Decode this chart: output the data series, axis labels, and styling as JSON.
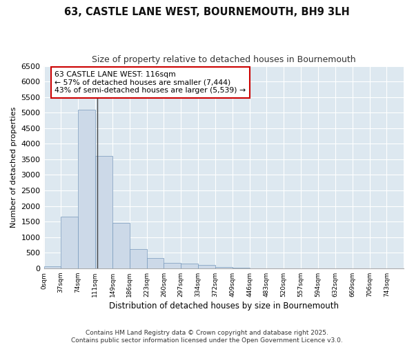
{
  "title": "63, CASTLE LANE WEST, BOURNEMOUTH, BH9 3LH",
  "subtitle": "Size of property relative to detached houses in Bournemouth",
  "xlabel": "Distribution of detached houses by size in Bournemouth",
  "ylabel": "Number of detached properties",
  "footer_line1": "Contains HM Land Registry data © Crown copyright and database right 2025.",
  "footer_line2": "Contains public sector information licensed under the Open Government Licence v3.0.",
  "bin_labels": [
    "0sqm",
    "37sqm",
    "74sqm",
    "111sqm",
    "149sqm",
    "186sqm",
    "223sqm",
    "260sqm",
    "297sqm",
    "334sqm",
    "372sqm",
    "409sqm",
    "446sqm",
    "483sqm",
    "520sqm",
    "557sqm",
    "594sqm",
    "632sqm",
    "669sqm",
    "706sqm",
    "743sqm"
  ],
  "bin_edges": [
    0,
    37,
    74,
    111,
    149,
    186,
    223,
    260,
    297,
    334,
    372,
    409,
    446,
    483,
    520,
    557,
    594,
    632,
    669,
    706,
    743,
    780
  ],
  "bar_heights": [
    60,
    1650,
    5100,
    3600,
    1450,
    620,
    320,
    165,
    150,
    100,
    50,
    20,
    5,
    0,
    0,
    0,
    0,
    0,
    0,
    0,
    0
  ],
  "bar_color": "#ccd9e8",
  "bar_edge_color": "#7799bb",
  "plot_bg_color": "#dde8f0",
  "fig_bg_color": "#ffffff",
  "grid_color": "#ffffff",
  "property_size": 116,
  "annotation_text_line1": "63 CASTLE LANE WEST: 116sqm",
  "annotation_text_line2": "← 57% of detached houses are smaller (7,444)",
  "annotation_text_line3": "43% of semi-detached houses are larger (5,539) →",
  "annotation_box_color": "#cc0000",
  "ylim": [
    0,
    6500
  ],
  "yticks": [
    0,
    500,
    1000,
    1500,
    2000,
    2500,
    3000,
    3500,
    4000,
    4500,
    5000,
    5500,
    6000,
    6500
  ]
}
